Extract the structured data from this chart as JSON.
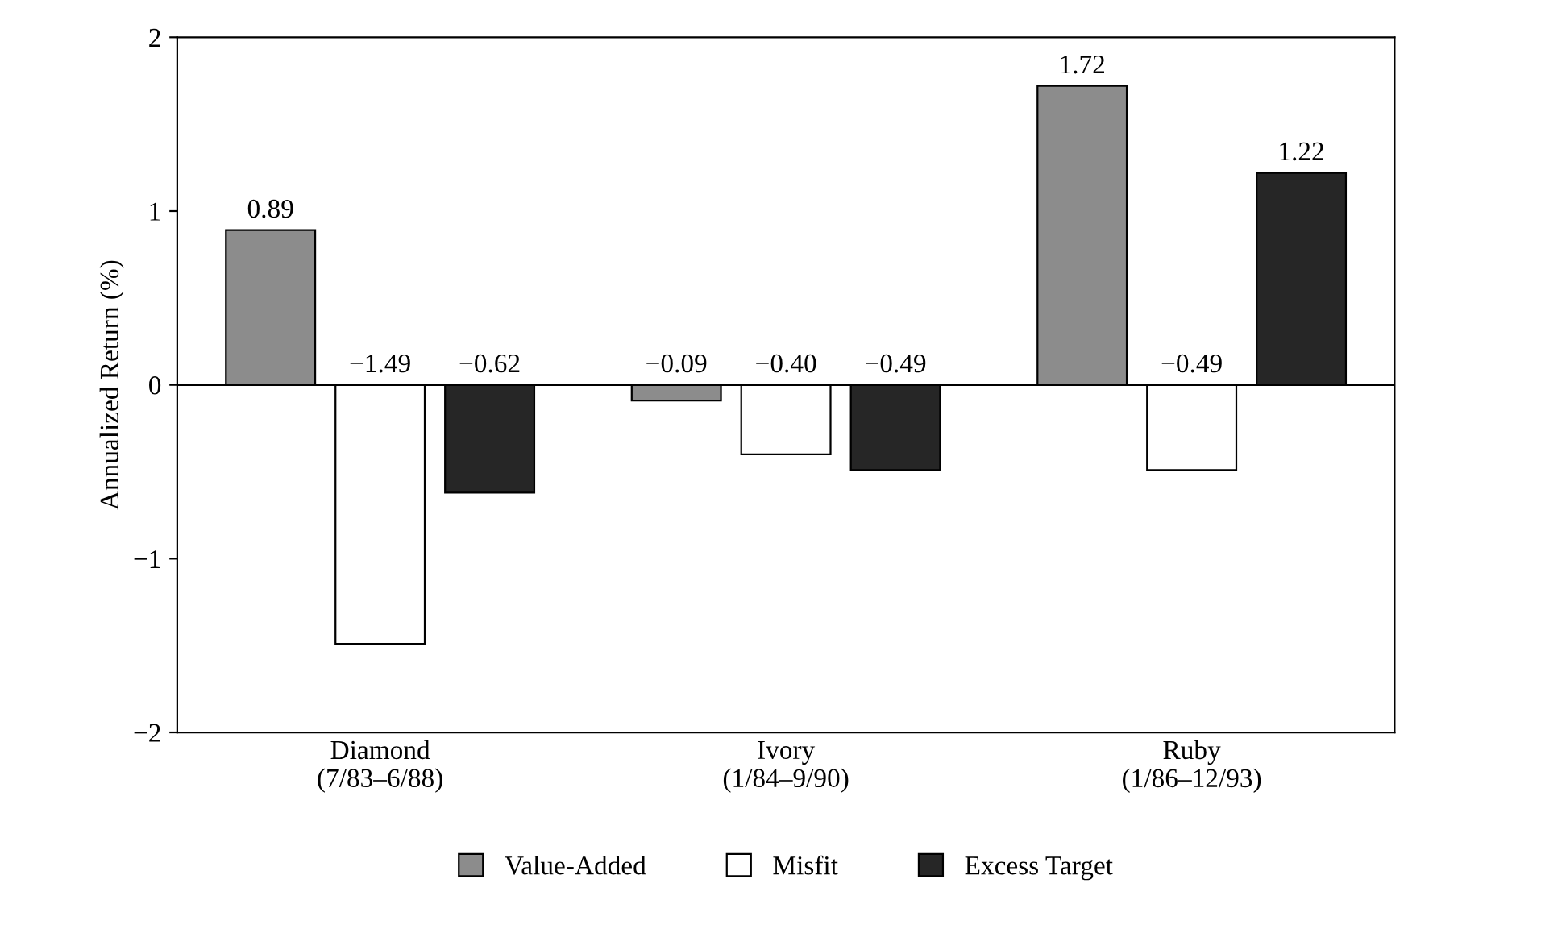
{
  "chart_data": {
    "type": "bar",
    "ylabel": "Annualized Return (%)",
    "categories": [
      "Diamond\n(7/83–6/88)",
      "Ivory\n(1/84–9/90)",
      "Ruby\n(1/86–12/93)"
    ],
    "series": [
      {
        "name": "Value-Added",
        "color": "#8c8c8c",
        "values": [
          0.89,
          -0.09,
          1.72
        ],
        "value_labels": [
          "0.89",
          "−0.09",
          "1.72"
        ]
      },
      {
        "name": "Misfit",
        "color": "#ffffff",
        "values": [
          -1.49,
          -0.4,
          -0.49
        ],
        "value_labels": [
          "−1.49",
          "−0.40",
          "−0.49"
        ]
      },
      {
        "name": "Excess Target",
        "color": "#262626",
        "values": [
          -0.62,
          -0.49,
          1.22
        ],
        "value_labels": [
          "−0.62",
          "−0.49",
          "1.22"
        ]
      }
    ],
    "ylim": [
      -2,
      2
    ],
    "yticks": [
      {
        "value": -2,
        "label": "−2"
      },
      {
        "value": -1,
        "label": "−1"
      },
      0,
      1,
      2
    ],
    "ref_lines": [
      {
        "axis": "y",
        "value": 0,
        "color": "#000000"
      }
    ],
    "grid": false,
    "legend": "bottom"
  }
}
